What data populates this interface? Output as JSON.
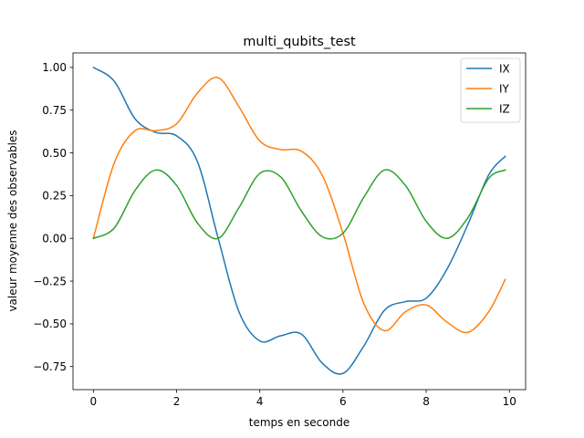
{
  "chart_data": {
    "type": "line",
    "title": "multi_qubits_test",
    "xlabel": "temps en seconde",
    "ylabel": "valeur moyenne des observables",
    "xlim": [
      -0.49,
      10.39
    ],
    "ylim": [
      -0.885,
      1.085
    ],
    "xticks": [
      0,
      2,
      4,
      6,
      8,
      10
    ],
    "xtick_labels": [
      "0",
      "2",
      "4",
      "6",
      "8",
      "10"
    ],
    "yticks": [
      -0.75,
      -0.5,
      -0.25,
      0.0,
      0.25,
      0.5,
      0.75,
      1.0
    ],
    "ytick_labels": [
      "−0.75",
      "−0.50",
      "−0.25",
      "0.00",
      "0.25",
      "0.50",
      "0.75",
      "1.00"
    ],
    "grid": false,
    "legend_position": "top-right",
    "x": [
      0,
      0.5,
      1,
      1.5,
      2,
      2.5,
      3,
      3.5,
      4,
      4.5,
      5,
      5.5,
      6,
      6.5,
      7,
      7.5,
      8,
      8.5,
      9,
      9.5,
      9.9
    ],
    "series": [
      {
        "name": "IX",
        "color": "#1f77b4",
        "values": [
          1.0,
          0.92,
          0.7,
          0.62,
          0.6,
          0.45,
          0.0,
          -0.43,
          -0.6,
          -0.57,
          -0.56,
          -0.73,
          -0.79,
          -0.63,
          -0.42,
          -0.37,
          -0.35,
          -0.18,
          0.08,
          0.37,
          0.48
        ]
      },
      {
        "name": "IY",
        "color": "#ff7f0e",
        "values": [
          0.0,
          0.44,
          0.63,
          0.63,
          0.67,
          0.85,
          0.94,
          0.77,
          0.57,
          0.52,
          0.51,
          0.37,
          0.03,
          -0.38,
          -0.54,
          -0.43,
          -0.39,
          -0.49,
          -0.55,
          -0.43,
          -0.24
        ]
      },
      {
        "name": "IZ",
        "color": "#2ca02c",
        "values": [
          0.0,
          0.06,
          0.28,
          0.4,
          0.31,
          0.09,
          0.0,
          0.18,
          0.38,
          0.36,
          0.16,
          0.01,
          0.03,
          0.24,
          0.4,
          0.31,
          0.1,
          0.0,
          0.12,
          0.35,
          0.4
        ]
      }
    ]
  }
}
